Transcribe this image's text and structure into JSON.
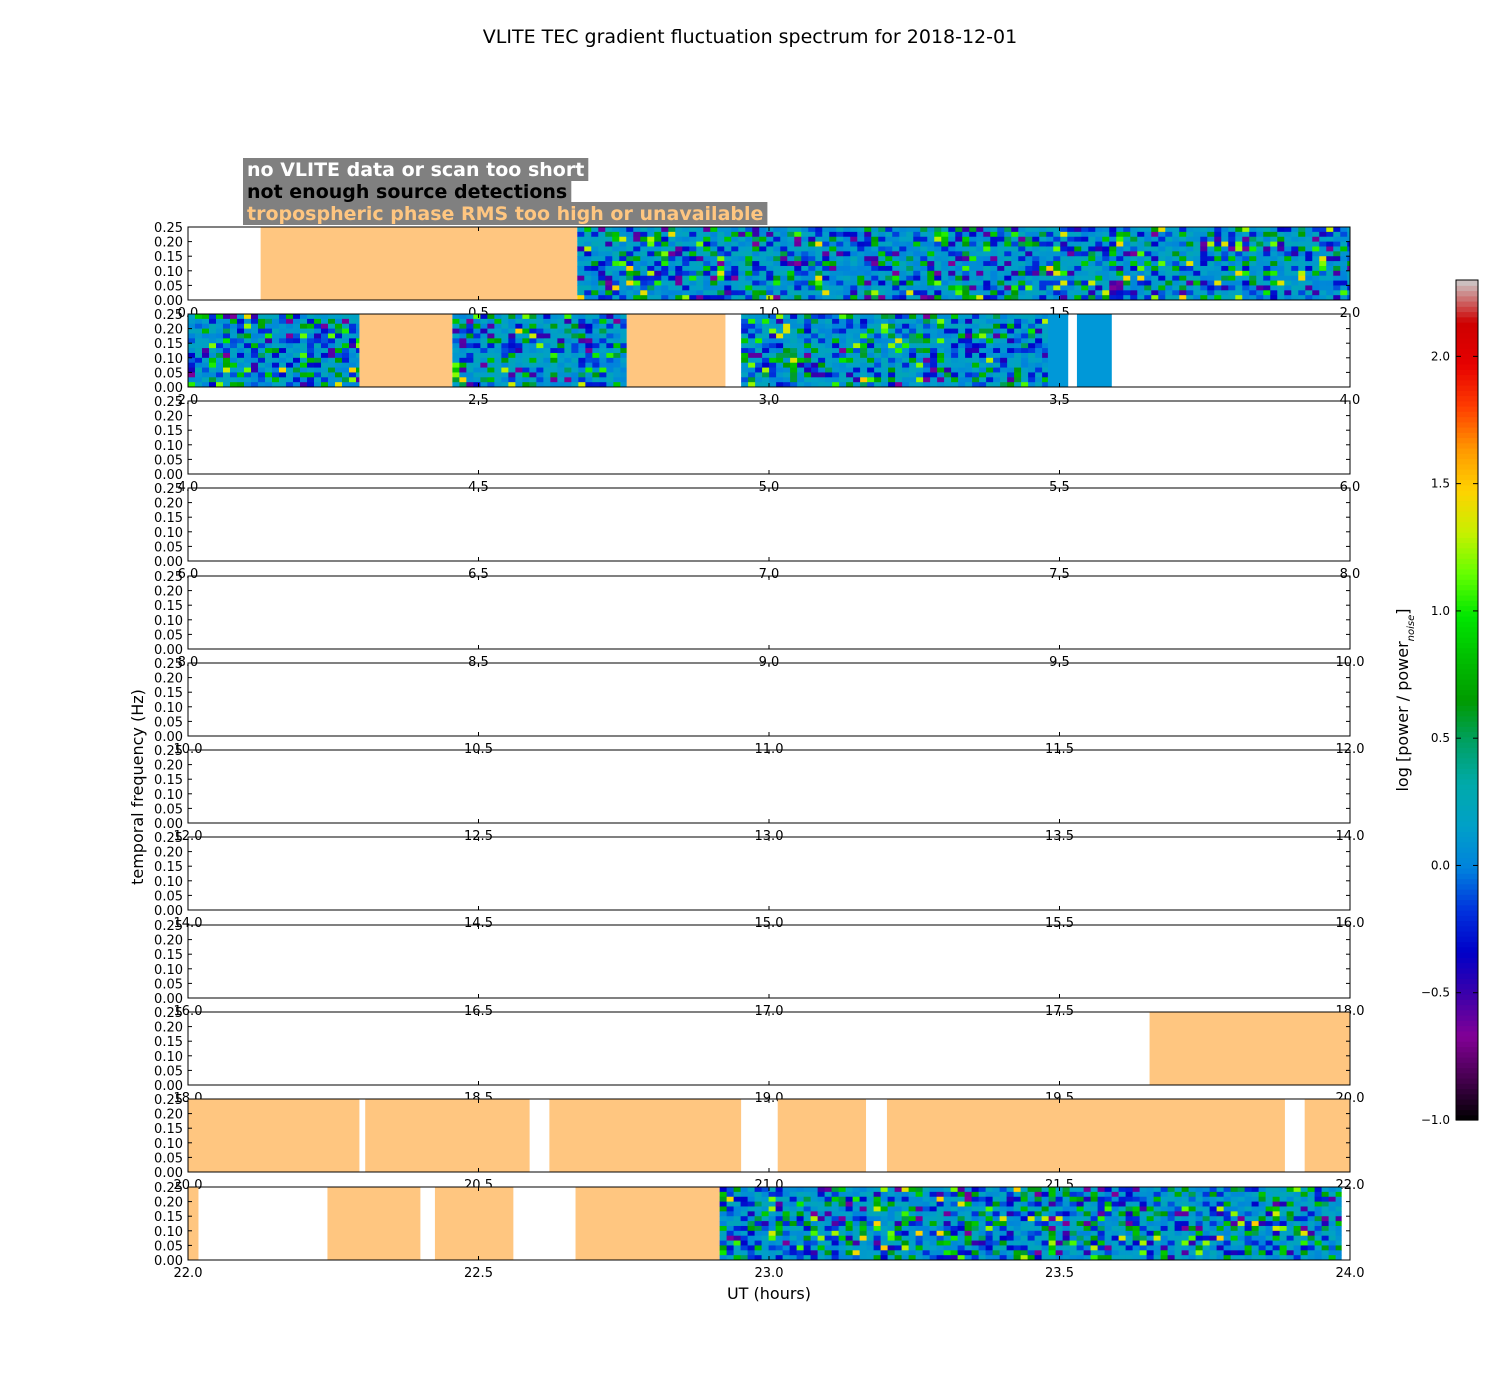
{
  "chart_data": {
    "type": "heatmap",
    "title": "VLITE TEC gradient fluctuation spectrum for 2018-12-01",
    "xlabel": "UT (hours)",
    "ylabel": "temporal frequency (Hz)",
    "ylim": [
      0,
      0.25
    ],
    "ytick_labels": [
      "0.00",
      "0.05",
      "0.10",
      "0.15",
      "0.20",
      "0.25"
    ],
    "colorbar": {
      "label": "log [power / power",
      "label_subscript": "noise",
      "label_close": "]",
      "range": [
        -1.0,
        2.3
      ],
      "ticks": [
        -1.0,
        -0.5,
        0.0,
        0.5,
        1.0,
        1.5,
        2.0
      ],
      "tick_labels": [
        "−1.0",
        "−0.5",
        "0.0",
        "0.5",
        "1.0",
        "1.5",
        "2.0"
      ],
      "colormap": "nipy_spectral"
    },
    "legend": [
      {
        "label": "no VLITE data or scan too short",
        "text_color": "#ffffff"
      },
      {
        "label": "not enough source detections",
        "text_color": "#000000"
      },
      {
        "label": "tropospheric phase RMS too high or unavailable",
        "text_color": "#ffc680"
      }
    ],
    "legend_colors": {
      "box": "#808080",
      "troposphere_flag": "#ffc680",
      "no_detection_flag": "#0098d8"
    },
    "panels": [
      {
        "x_range": [
          0,
          2
        ],
        "xtick_labels": [
          "0.0",
          "0.5",
          "1.0",
          "1.5",
          "2.0"
        ],
        "segments": [
          {
            "start": 0.125,
            "end": 0.67,
            "kind": "troposphere"
          },
          {
            "start": 0.67,
            "end": 2.0,
            "kind": "spectrum"
          }
        ]
      },
      {
        "x_range": [
          2,
          4
        ],
        "xtick_labels": [
          "2.0",
          "2.5",
          "3.0",
          "3.5",
          "4.0"
        ],
        "segments": [
          {
            "start": 2.0,
            "end": 2.295,
            "kind": "spectrum"
          },
          {
            "start": 2.295,
            "end": 2.455,
            "kind": "troposphere"
          },
          {
            "start": 2.455,
            "end": 2.755,
            "kind": "spectrum"
          },
          {
            "start": 2.755,
            "end": 2.925,
            "kind": "troposphere"
          },
          {
            "start": 2.952,
            "end": 3.48,
            "kind": "spectrum"
          },
          {
            "start": 3.48,
            "end": 3.515,
            "kind": "no_detection"
          },
          {
            "start": 3.53,
            "end": 3.59,
            "kind": "no_detection"
          }
        ]
      },
      {
        "x_range": [
          4,
          6
        ],
        "xtick_labels": [
          "4.0",
          "4.5",
          "5.0",
          "5.5",
          "6.0"
        ],
        "segments": []
      },
      {
        "x_range": [
          6,
          8
        ],
        "xtick_labels": [
          "6.0",
          "6.5",
          "7.0",
          "7.5",
          "8.0"
        ],
        "segments": []
      },
      {
        "x_range": [
          8,
          10
        ],
        "xtick_labels": [
          "8.0",
          "8.5",
          "9.0",
          "9.5",
          "10.0"
        ],
        "segments": []
      },
      {
        "x_range": [
          10,
          12
        ],
        "xtick_labels": [
          "10.0",
          "10.5",
          "11.0",
          "11.5",
          "12.0"
        ],
        "segments": []
      },
      {
        "x_range": [
          12,
          14
        ],
        "xtick_labels": [
          "12.0",
          "12.5",
          "13.0",
          "13.5",
          "14.0"
        ],
        "segments": []
      },
      {
        "x_range": [
          14,
          16
        ],
        "xtick_labels": [
          "14.0",
          "14.5",
          "15.0",
          "15.5",
          "16.0"
        ],
        "segments": []
      },
      {
        "x_range": [
          16,
          18
        ],
        "xtick_labels": [
          "16.0",
          "16.5",
          "17.0",
          "17.5",
          "18.0"
        ],
        "segments": []
      },
      {
        "x_range": [
          18,
          20
        ],
        "xtick_labels": [
          "18.0",
          "18.5",
          "19.0",
          "19.5",
          "20.0"
        ],
        "segments": [
          {
            "start": 19.655,
            "end": 20.0,
            "kind": "troposphere"
          }
        ]
      },
      {
        "x_range": [
          20,
          22
        ],
        "xtick_labels": [
          "20.0",
          "20.5",
          "21.0",
          "21.5",
          "22.0"
        ],
        "segments": [
          {
            "start": 20.0,
            "end": 20.295,
            "kind": "troposphere"
          },
          {
            "start": 20.305,
            "end": 20.588,
            "kind": "troposphere"
          },
          {
            "start": 20.622,
            "end": 20.952,
            "kind": "troposphere"
          },
          {
            "start": 21.015,
            "end": 21.167,
            "kind": "troposphere"
          },
          {
            "start": 21.203,
            "end": 21.888,
            "kind": "troposphere"
          },
          {
            "start": 21.922,
            "end": 22.0,
            "kind": "troposphere"
          }
        ]
      },
      {
        "x_range": [
          22,
          24
        ],
        "xtick_labels": [
          "22.0",
          "22.5",
          "23.0",
          "23.5",
          "24.0"
        ],
        "segments": [
          {
            "start": 22.0,
            "end": 22.018,
            "kind": "troposphere"
          },
          {
            "start": 22.24,
            "end": 22.4,
            "kind": "troposphere"
          },
          {
            "start": 22.425,
            "end": 22.56,
            "kind": "troposphere"
          },
          {
            "start": 22.667,
            "end": 22.915,
            "kind": "troposphere"
          },
          {
            "start": 22.915,
            "end": 23.985,
            "kind": "spectrum"
          }
        ]
      }
    ]
  }
}
